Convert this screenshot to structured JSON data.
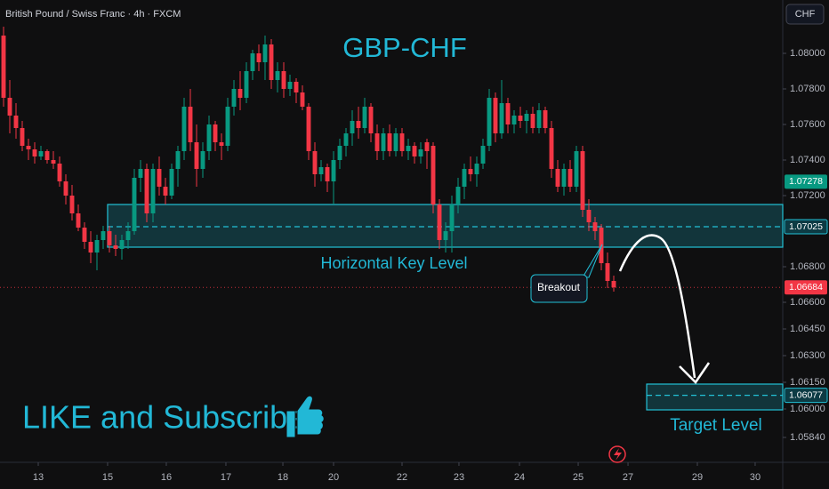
{
  "chart_data": {
    "type": "candlestick",
    "header": "British Pound / Swiss Franc · 4h · FXCM",
    "currency": "CHF",
    "title": "GBP-CHF",
    "annotations": {
      "key_level": "Horizontal Key Level",
      "breakout": "Breakout",
      "subscribe": "LIKE and Subscribe",
      "target": "Target Level"
    },
    "up_color": "#089981",
    "down_color": "#f23645",
    "open": [
      1.081,
      1.0775,
      1.0765,
      1.0758,
      1.0748,
      1.0746,
      1.0742,
      1.0745,
      1.074,
      1.0738,
      1.0728,
      1.072,
      1.071,
      1.0702,
      1.0694,
      1.0688,
      1.0695,
      1.07,
      1.0692,
      1.069,
      1.0695,
      1.07,
      1.073,
      1.0735,
      1.071,
      1.0735,
      1.0725,
      1.072,
      1.0735,
      1.0745,
      1.077,
      1.075,
      1.0735,
      1.0745,
      1.076,
      1.075,
      1.0748,
      1.077,
      1.078,
      1.0775,
      1.079,
      1.08,
      1.0795,
      1.0805,
      1.0785,
      1.079,
      1.078,
      1.0784,
      1.0778,
      1.077,
      1.0745,
      1.0732,
      1.0736,
      1.0728,
      1.074,
      1.0748,
      1.0755,
      1.0762,
      1.0758,
      1.077,
      1.0755,
      1.0745,
      1.0755,
      1.0745,
      1.0755,
      1.0745,
      1.0748,
      1.0742,
      1.075,
      1.0748,
      1.0715,
      1.0695,
      1.07,
      1.0715,
      1.0725,
      1.0735,
      1.0732,
      1.0738,
      1.0748,
      1.0775,
      1.0755,
      1.0772,
      1.076,
      1.0765,
      1.0762,
      1.0766,
      1.0758,
      1.0768,
      1.0758,
      1.0735,
      1.0725,
      1.0735,
      1.0725,
      1.0745,
      1.0712,
      1.0705,
      1.0702,
      1.0682,
      1.0672
    ],
    "high": [
      1.0815,
      1.0785,
      1.0772,
      1.0762,
      1.0752,
      1.075,
      1.0748,
      1.0746,
      1.0745,
      1.0742,
      1.0732,
      1.0726,
      1.0715,
      1.0705,
      1.07,
      1.0698,
      1.0703,
      1.0703,
      1.0698,
      1.0698,
      1.0705,
      1.0735,
      1.074,
      1.0738,
      1.0738,
      1.0742,
      1.073,
      1.0738,
      1.0748,
      1.0775,
      1.078,
      1.076,
      1.075,
      1.0765,
      1.0762,
      1.0755,
      1.0775,
      1.0785,
      1.079,
      1.0795,
      1.0802,
      1.0805,
      1.081,
      1.0808,
      1.0795,
      1.0795,
      1.0788,
      1.0786,
      1.0782,
      1.0772,
      1.075,
      1.074,
      1.0738,
      1.0745,
      1.0752,
      1.0758,
      1.0768,
      1.077,
      1.0775,
      1.0772,
      1.076,
      1.0758,
      1.076,
      1.0758,
      1.0758,
      1.0752,
      1.075,
      1.075,
      1.0752,
      1.075,
      1.0718,
      1.0705,
      1.072,
      1.073,
      1.0738,
      1.0742,
      1.0742,
      1.0752,
      1.078,
      1.0778,
      1.0785,
      1.0775,
      1.0768,
      1.077,
      1.0768,
      1.077,
      1.0772,
      1.077,
      1.0762,
      1.074,
      1.0738,
      1.074,
      1.0748,
      1.0748,
      1.0718,
      1.0708,
      1.0704,
      1.0688,
      1.0675
    ],
    "low": [
      1.077,
      1.0755,
      1.0752,
      1.0745,
      1.074,
      1.0738,
      1.074,
      1.0738,
      1.0735,
      1.0725,
      1.0715,
      1.0706,
      1.07,
      1.069,
      1.0682,
      1.0678,
      1.069,
      1.0688,
      1.0686,
      1.0684,
      1.069,
      1.0698,
      1.0722,
      1.0705,
      1.0705,
      1.072,
      1.0715,
      1.0718,
      1.0725,
      1.074,
      1.0745,
      1.0725,
      1.073,
      1.074,
      1.0745,
      1.074,
      1.0745,
      1.0765,
      1.0768,
      1.0772,
      1.0785,
      1.079,
      1.0785,
      1.078,
      1.0778,
      1.0775,
      1.0776,
      1.0772,
      1.0768,
      1.074,
      1.0725,
      1.0728,
      1.0722,
      1.0715,
      1.0735,
      1.0742,
      1.0748,
      1.0752,
      1.0755,
      1.075,
      1.074,
      1.074,
      1.0742,
      1.0742,
      1.0742,
      1.074,
      1.0738,
      1.0738,
      1.0735,
      1.071,
      1.069,
      1.0688,
      1.0688,
      1.071,
      1.0718,
      1.0728,
      1.0725,
      1.0735,
      1.0745,
      1.075,
      1.0752,
      1.0755,
      1.0755,
      1.0758,
      1.0755,
      1.0755,
      1.0755,
      1.0755,
      1.073,
      1.0722,
      1.072,
      1.0722,
      1.0722,
      1.0708,
      1.07,
      1.0695,
      1.0678,
      1.0668,
      1.0666
    ],
    "close": [
      1.0775,
      1.0765,
      1.0758,
      1.0748,
      1.0746,
      1.0742,
      1.0745,
      1.074,
      1.0738,
      1.0728,
      1.072,
      1.071,
      1.0702,
      1.0694,
      1.0688,
      1.0695,
      1.07,
      1.0692,
      1.069,
      1.0695,
      1.07,
      1.073,
      1.0735,
      1.071,
      1.0735,
      1.0725,
      1.072,
      1.0735,
      1.0745,
      1.077,
      1.075,
      1.0735,
      1.0745,
      1.076,
      1.075,
      1.0748,
      1.077,
      1.078,
      1.0775,
      1.079,
      1.08,
      1.0795,
      1.0805,
      1.0785,
      1.079,
      1.078,
      1.0784,
      1.0778,
      1.077,
      1.0745,
      1.0732,
      1.0736,
      1.0728,
      1.074,
      1.0748,
      1.0755,
      1.0762,
      1.0758,
      1.077,
      1.0755,
      1.0745,
      1.0755,
      1.0745,
      1.0755,
      1.0745,
      1.0748,
      1.0742,
      1.0746,
      1.0745,
      1.0715,
      1.0695,
      1.07,
      1.0715,
      1.0725,
      1.0735,
      1.0732,
      1.0738,
      1.0748,
      1.0775,
      1.0755,
      1.0772,
      1.076,
      1.0765,
      1.0762,
      1.0766,
      1.0758,
      1.0768,
      1.0758,
      1.0735,
      1.0725,
      1.0735,
      1.0725,
      1.0745,
      1.0712,
      1.0705,
      1.07,
      1.0682,
      1.0672,
      1.06684
    ],
    "xlim": [
      -0.571,
      125.143
    ],
    "xticks": [
      {
        "value": 5.57,
        "label": "13"
      },
      {
        "value": 16.71,
        "label": "15"
      },
      {
        "value": 26.14,
        "label": "16"
      },
      {
        "value": 35.71,
        "label": "17"
      },
      {
        "value": 44.86,
        "label": "18"
      },
      {
        "value": 53,
        "label": "20"
      },
      {
        "value": 64,
        "label": "22"
      },
      {
        "value": 73.14,
        "label": "23"
      },
      {
        "value": 82.86,
        "label": "24"
      },
      {
        "value": 92.29,
        "label": "25"
      },
      {
        "value": 100.29,
        "label": "27"
      },
      {
        "value": 111.43,
        "label": "29"
      },
      {
        "value": 120.71,
        "label": "30"
      }
    ],
    "ylim": [
      1.057,
      1.083
    ],
    "yticks": [
      {
        "value": 1.08,
        "label": "1.08000"
      },
      {
        "value": 1.078,
        "label": "1.07800"
      },
      {
        "value": 1.076,
        "label": "1.07600"
      },
      {
        "value": 1.074,
        "label": "1.07400"
      },
      {
        "value": 1.072,
        "label": "1.07200"
      },
      {
        "value": 1.068,
        "label": "1.06800"
      },
      {
        "value": 1.066,
        "label": "1.06600"
      },
      {
        "value": 1.0645,
        "label": "1.06450"
      },
      {
        "value": 1.063,
        "label": "1.06300"
      },
      {
        "value": 1.0615,
        "label": "1.06150"
      },
      {
        "value": 1.06,
        "label": "1.06000"
      },
      {
        "value": 1.0584,
        "label": "1.05840"
      }
    ],
    "grid": false,
    "zones": [
      {
        "x_start": 16.71,
        "top": 1.0715,
        "bottom": 1.0691,
        "level": 1.07025,
        "color": "#22c1d6"
      },
      {
        "x_start": 103.29,
        "top": 1.0614,
        "bottom": 1.05995,
        "level": 1.06077,
        "color": "#22c1d6"
      }
    ],
    "markers": [
      {
        "value": 1.07278,
        "color": "#089981"
      },
      {
        "value": 1.06684,
        "color": "#f23645"
      }
    ]
  }
}
